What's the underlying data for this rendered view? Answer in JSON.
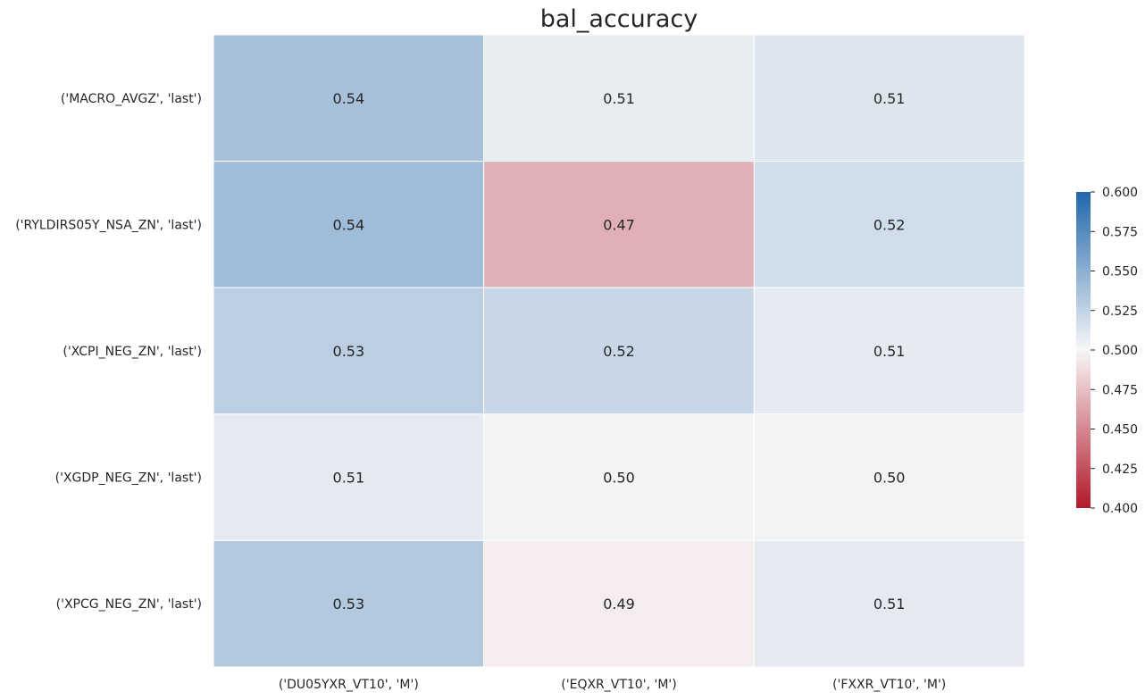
{
  "chart_data": {
    "type": "heatmap",
    "title": "bal_accuracy",
    "xlabel": "",
    "ylabel": "",
    "x_categories": [
      "('DU05YXR_VT10', 'M')",
      "('EQXR_VT10', 'M')",
      "('FXXR_VT10', 'M')"
    ],
    "y_categories": [
      "('MACRO_AVGZ', 'last')",
      "('RYLDIRS05Y_NSA_ZN', 'last')",
      "('XCPI_NEG_ZN', 'last')",
      "('XGDP_NEG_ZN', 'last')",
      "('XPCG_NEG_ZN', 'last')"
    ],
    "values": [
      [
        0.537,
        0.507,
        0.512
      ],
      [
        0.541,
        0.468,
        0.518
      ],
      [
        0.528,
        0.522,
        0.508
      ],
      [
        0.509,
        0.502,
        0.503
      ],
      [
        0.532,
        0.495,
        0.509
      ]
    ],
    "labels": [
      [
        "0.54",
        "0.51",
        "0.51"
      ],
      [
        "0.54",
        "0.47",
        "0.52"
      ],
      [
        "0.53",
        "0.52",
        "0.51"
      ],
      [
        "0.51",
        "0.50",
        "0.50"
      ],
      [
        "0.53",
        "0.49",
        "0.51"
      ]
    ],
    "colorbar": {
      "vmin": 0.4,
      "vmax": 0.6,
      "ticks": [
        "0.400",
        "0.425",
        "0.450",
        "0.475",
        "0.500",
        "0.525",
        "0.550",
        "0.575",
        "0.600"
      ],
      "colormap": "diverging red-white-blue",
      "low_color": "#b2182b",
      "mid_color": "#f7f7f7",
      "high_color": "#2166ac"
    }
  }
}
